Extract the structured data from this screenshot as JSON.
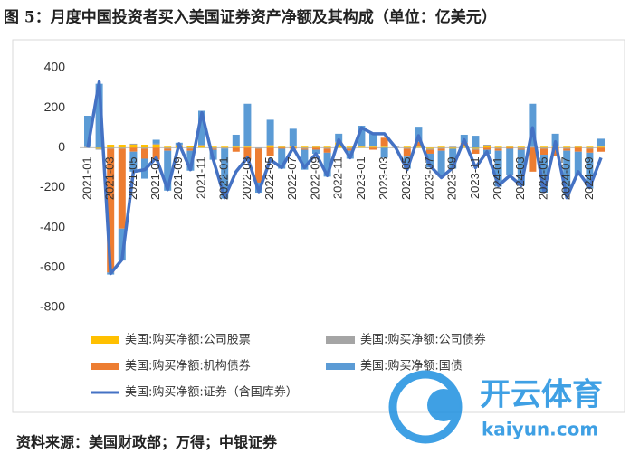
{
  "chart_data": {
    "type": "bar",
    "title": "图 5：月度中国投资者买入美国证券资产净额及其构成（单位：亿美元）",
    "source": "资料来源：美国财政部；万得；中银证券",
    "watermark": [
      "开云体育",
      "kaiyun.com"
    ],
    "stacked": true,
    "categories": [
      "2021-01",
      null,
      "2021-03",
      null,
      "2021-05",
      null,
      "2021-07",
      null,
      "2021-09",
      null,
      "2021-11",
      null,
      "2022-01",
      null,
      "2022-03",
      null,
      "2022-05",
      null,
      "2022-07",
      null,
      "2022-09",
      null,
      "2022-11",
      null,
      "2023-01",
      null,
      "2023-03",
      null,
      "2023-05",
      null,
      "2023-07",
      null,
      "2023-09",
      null,
      "2023-11",
      null,
      "2024-01",
      null,
      "2024-03",
      null,
      "2024-05",
      null,
      "2024-07",
      null,
      "2024-09",
      null
    ],
    "ylim": [
      -800,
      400
    ],
    "yticks": [
      -800,
      -600,
      -400,
      -200,
      0,
      200,
      400
    ],
    "series": [
      {
        "name": "美国:购买净额:公司股票",
        "color": "#ffc000",
        "values": [
          0,
          -5,
          15,
          15,
          15,
          15,
          15,
          5,
          10,
          10,
          10,
          5,
          5,
          5,
          5,
          0,
          10,
          5,
          5,
          5,
          5,
          5,
          25,
          5,
          5,
          5,
          5,
          0,
          5,
          5,
          -5,
          5,
          -5,
          5,
          -5,
          10,
          5,
          5,
          5,
          0,
          5,
          5,
          5,
          5,
          5,
          5
        ]
      },
      {
        "name": "美国:购买净额:公司债券",
        "color": "#a5a5a5",
        "values": [
          5,
          -5,
          -5,
          -5,
          5,
          -5,
          5,
          -5,
          5,
          -5,
          5,
          -5,
          -5,
          5,
          5,
          -5,
          5,
          5,
          5,
          -5,
          5,
          -5,
          5,
          -5,
          5,
          5,
          5,
          5,
          -5,
          5,
          -5,
          -5,
          5,
          5,
          -5,
          5,
          -5,
          5,
          -5,
          5,
          -5,
          5,
          -5,
          5,
          -5,
          5
        ]
      },
      {
        "name": "美国:购买净额:机构债券",
        "color": "#ed7d31",
        "values": [
          0,
          0,
          -620,
          -400,
          -20,
          -50,
          -60,
          -10,
          0,
          -10,
          0,
          -5,
          0,
          -20,
          -60,
          -170,
          -40,
          -5,
          -5,
          -5,
          -10,
          -20,
          0,
          -10,
          0,
          -10,
          40,
          0,
          -40,
          20,
          -20,
          -10,
          0,
          15,
          -20,
          -10,
          -10,
          -5,
          -5,
          -120,
          -30,
          -40,
          -10,
          -20,
          -20,
          -20
        ]
      },
      {
        "name": "美国:购买净额:国债",
        "color": "#5b9bd5",
        "values": [
          155,
          320,
          -10,
          -160,
          -100,
          -100,
          20,
          -200,
          10,
          -100,
          170,
          -50,
          -250,
          55,
          210,
          -50,
          125,
          -100,
          85,
          -100,
          -20,
          -120,
          40,
          -40,
          100,
          60,
          -50,
          0,
          -60,
          75,
          -70,
          -130,
          -100,
          40,
          60,
          -20,
          -180,
          -130,
          -180,
          215,
          -190,
          60,
          -220,
          -120,
          -180,
          35
        ]
      },
      {
        "name": "美国:购买净额:证券（含国库券）",
        "color": "#4472c4",
        "type": "line",
        "values": [
          0,
          330,
          -630,
          -560,
          -120,
          -110,
          -50,
          -210,
          20,
          -110,
          175,
          -60,
          -250,
          -120,
          -50,
          -220,
          -60,
          -100,
          0,
          -100,
          -30,
          -140,
          40,
          -50,
          100,
          70,
          70,
          0,
          -110,
          60,
          -90,
          -150,
          -100,
          40,
          -100,
          -20,
          -190,
          -140,
          -190,
          100,
          -220,
          30,
          -250,
          -120,
          -200,
          -50
        ]
      }
    ]
  }
}
